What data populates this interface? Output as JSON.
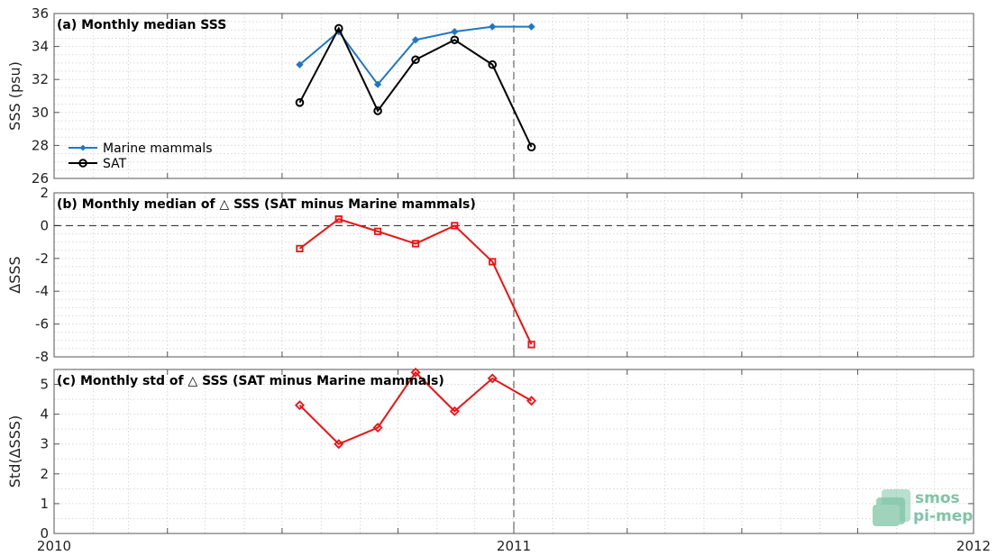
{
  "colors": {
    "marine": "#1f77c4",
    "sat": "#000000",
    "delta": "#ee1111",
    "grid": "#d8d8d8",
    "logo": "#7fc4a6"
  },
  "logo": {
    "line1": "smos",
    "line2": "pi-mep",
    "icon": "smos-pimep-logo-icon"
  },
  "chart_data": [
    {
      "type": "line",
      "title": "(a) Monthly median SSS",
      "xlabel": "",
      "ylabel": "SSS (psu)",
      "xlim": [
        "2010-01-01",
        "2012-01-01"
      ],
      "ylim": [
        26,
        36
      ],
      "yticks": [
        26,
        28,
        30,
        32,
        34,
        36
      ],
      "xticks": [
        "2010",
        "2011",
        "2012"
      ],
      "x": [
        "2010-07-15",
        "2010-08-15",
        "2010-09-15",
        "2010-10-15",
        "2010-11-15",
        "2010-12-15",
        "2011-01-15"
      ],
      "series": [
        {
          "name": "Marine mammals",
          "values": [
            32.9,
            34.9,
            31.7,
            34.4,
            34.9,
            35.2,
            35.2
          ],
          "marker": "diamond"
        },
        {
          "name": "SAT",
          "values": [
            30.6,
            35.1,
            30.1,
            33.2,
            34.4,
            32.9,
            27.9
          ],
          "marker": "circle"
        }
      ],
      "legend": "left",
      "grid": true,
      "vline": "2011-01-01"
    },
    {
      "type": "line",
      "title": "(b) Monthly median of △ SSS (SAT minus Marine mammals)",
      "xlabel": "",
      "ylabel": "ΔSSS",
      "xlim": [
        "2010-01-01",
        "2012-01-01"
      ],
      "ylim": [
        -8,
        2
      ],
      "yticks": [
        -8,
        -6,
        -4,
        -2,
        0,
        2
      ],
      "x": [
        "2010-07-15",
        "2010-08-15",
        "2010-09-15",
        "2010-10-15",
        "2010-11-15",
        "2010-12-15",
        "2011-01-15"
      ],
      "series": [
        {
          "values": [
            -1.4,
            0.4,
            -0.35,
            -1.1,
            0.0,
            -2.2,
            -7.25
          ],
          "marker": "square"
        }
      ],
      "hline": 0,
      "grid": true,
      "vline": "2011-01-01"
    },
    {
      "type": "line",
      "title": "(c) Monthly std of △ SSS (SAT minus Marine mammals)",
      "xlabel": "",
      "ylabel": "Std(ΔSSS)",
      "xlim": [
        "2010-01-01",
        "2012-01-01"
      ],
      "ylim": [
        0,
        5.5
      ],
      "yticks": [
        0,
        1,
        2,
        3,
        4,
        5
      ],
      "xticks": [
        "2010",
        "2011",
        "2012"
      ],
      "x": [
        "2010-07-15",
        "2010-08-15",
        "2010-09-15",
        "2010-10-15",
        "2010-11-15",
        "2010-12-15",
        "2011-01-15"
      ],
      "series": [
        {
          "values": [
            4.3,
            3.0,
            3.55,
            5.4,
            4.1,
            5.2,
            4.45
          ],
          "marker": "diamond"
        }
      ],
      "grid": true,
      "vline": "2011-01-01"
    }
  ]
}
